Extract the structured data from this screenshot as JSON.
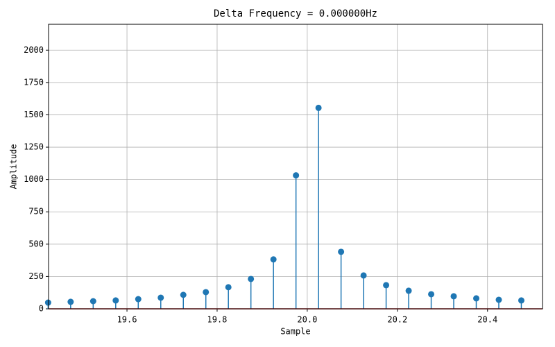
{
  "chart_data": {
    "type": "stem",
    "title": "Delta Frequency = 0.000000Hz",
    "x_label": "Sample",
    "y_label": "Amplitude",
    "x": [
      19.425,
      19.475,
      19.525,
      19.575,
      19.625,
      19.675,
      19.725,
      19.775,
      19.825,
      19.875,
      19.925,
      19.975,
      20.025,
      20.075,
      20.125,
      20.175,
      20.225,
      20.275,
      20.325,
      20.375,
      20.425,
      20.475
    ],
    "values": [
      48,
      54,
      59,
      65,
      75,
      86,
      108,
      129,
      167,
      231,
      382,
      1032,
      1554,
      441,
      258,
      183,
      140,
      113,
      97,
      81,
      70,
      65
    ],
    "color": "#1f77b4",
    "baseline_color": "#d62728",
    "xlim": [
      19.426,
      20.522
    ],
    "ylim": [
      0,
      2200
    ],
    "xticks": [
      19.6,
      19.8,
      {
        "value": 20.0,
        "label": "20.0"
      },
      20.2,
      20.4
    ],
    "yticks": [
      0,
      250,
      500,
      750,
      1000,
      1250,
      1500,
      1750,
      2000
    ],
    "grid": true
  }
}
